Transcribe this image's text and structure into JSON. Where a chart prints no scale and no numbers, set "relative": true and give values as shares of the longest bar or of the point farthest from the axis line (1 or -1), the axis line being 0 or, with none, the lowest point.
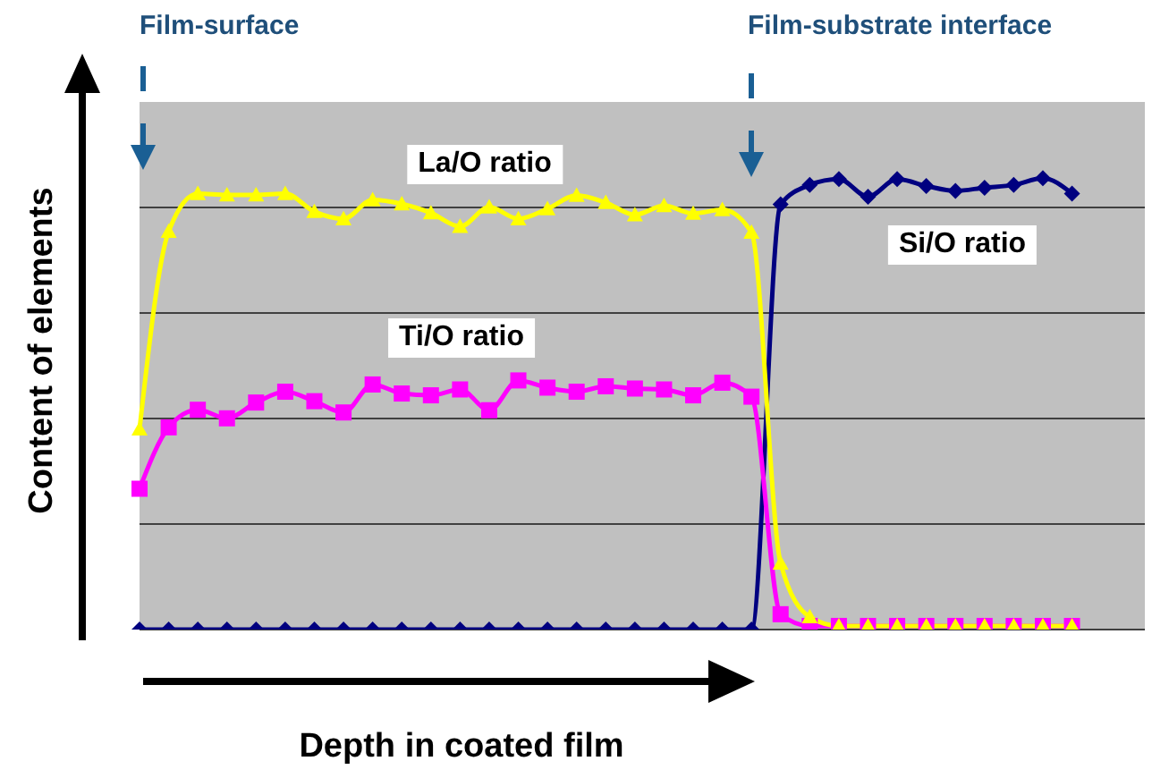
{
  "chart_data": {
    "type": "line",
    "relative": true,
    "xlabel": "Depth in coated film",
    "ylabel": "Content of elements",
    "annotations": [
      "Film-surface",
      "Film-substrate interface"
    ],
    "categories": [
      null,
      null,
      null,
      null,
      null,
      null,
      null,
      null,
      null,
      null,
      null,
      null,
      null,
      null,
      null,
      null,
      null,
      null,
      null,
      null,
      null,
      null,
      null,
      null,
      null,
      null,
      null,
      null,
      null,
      null,
      null,
      null,
      null
    ],
    "grid": "y",
    "legend": false,
    "series": [
      {
        "name": "La/O ratio",
        "color": "#ffff00",
        "marker": "triangle",
        "values": [
          0.444,
          0.882,
          0.966,
          0.963,
          0.963,
          0.966,
          0.926,
          0.91,
          0.952,
          0.943,
          0.923,
          0.893,
          0.936,
          0.91,
          0.932,
          0.962,
          0.946,
          0.919,
          0.939,
          0.922,
          0.93,
          0.88,
          0.147,
          0.028,
          0.008,
          0.008,
          0.008,
          0.008,
          0.008,
          0.008,
          0.008,
          0.008,
          0.008
        ]
      },
      {
        "name": "Ti/O ratio",
        "color": "#ff00ff",
        "marker": "square",
        "values": [
          0.312,
          0.448,
          0.487,
          0.468,
          0.503,
          0.527,
          0.506,
          0.481,
          0.543,
          0.523,
          0.519,
          0.532,
          0.486,
          0.552,
          0.536,
          0.527,
          0.539,
          0.534,
          0.532,
          0.519,
          0.547,
          0.516,
          0.034,
          0.008,
          0.008,
          0.008,
          0.008,
          0.008,
          0.008,
          0.008,
          0.008,
          0.008,
          0.008
        ]
      },
      {
        "name": "Si/O ratio",
        "color": "#000080",
        "marker": "diamond",
        "values": [
          0,
          0,
          0,
          0,
          0,
          0,
          0,
          0,
          0,
          0,
          0,
          0,
          0,
          0,
          0,
          0,
          0,
          0,
          0,
          0,
          0,
          0,
          0.942,
          0.985,
          0.998,
          0.959,
          0.998,
          0.983,
          0.972,
          0.979,
          0.985,
          1,
          0.966
        ]
      }
    ]
  }
}
